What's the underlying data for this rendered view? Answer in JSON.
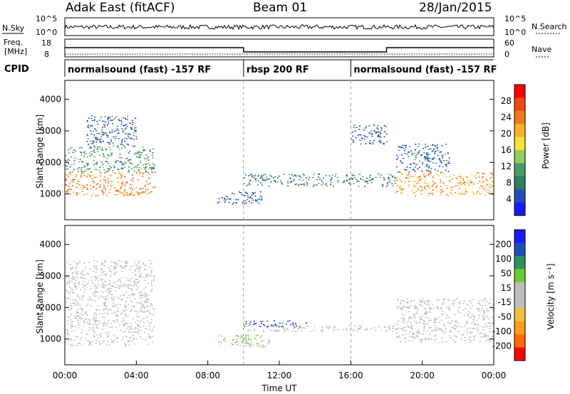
{
  "header": {
    "radar": "Adak East (fitACF)",
    "beam": "Beam 01",
    "date": "28/Jan/2015"
  },
  "strips": {
    "nsky_label": "N.Sky",
    "nsky_ticks": [
      "10^5",
      "10^0"
    ],
    "nsearch_label": "N.Search",
    "freq_label_top": "Freq.",
    "freq_label_units": "[MHz]",
    "freq_ticks": [
      "18",
      "8"
    ],
    "nave_label": "Nave",
    "nave_ticks": [
      "60",
      "0"
    ],
    "cpid_label": "CPID",
    "modes": [
      {
        "label": "normalsound (fast) -157 RF",
        "start_hr": 0,
        "end_hr": 10
      },
      {
        "label": "rbsp 200 RF",
        "start_hr": 10,
        "end_hr": 16
      },
      {
        "label": "normalsound (fast) -157 RF",
        "start_hr": 16,
        "end_hr": 24
      }
    ]
  },
  "colors": {
    "power": [
      "#1a1aff",
      "#1f4fb4",
      "#2e7d5b",
      "#4a9a6a",
      "#8fcf5a",
      "#f5e23a",
      "#f7b12a",
      "#f07a1a",
      "#ee4a10",
      "#ff0000"
    ],
    "velocity": [
      "#ff0000",
      "#ff6a00",
      "#ff9a1a",
      "#f2c040",
      "#bdbdbd",
      "#bdbdbd",
      "#66cc33",
      "#2f8f5f",
      "#1f4fb4",
      "#1a1aff"
    ],
    "ground_scatter": "#bdbdbd"
  },
  "chart_data": [
    {
      "type": "heatmap",
      "panel": "power",
      "ylabel": "Slant Range [km]",
      "xlabel": "",
      "xlim": [
        0,
        24
      ],
      "ylim": [
        180,
        4600
      ],
      "yticks": [
        1000,
        2000,
        3000,
        4000
      ],
      "colorbar": {
        "label": "Power [dB]",
        "range": [
          0,
          32
        ],
        "ticks": [
          4,
          8,
          12,
          16,
          20,
          24,
          28
        ]
      },
      "regions": [
        {
          "t0": 0.0,
          "t1": 5.0,
          "r0": 950,
          "r1": 1700,
          "level": 24
        },
        {
          "t0": 0.0,
          "t1": 5.0,
          "r0": 1700,
          "r1": 2500,
          "level": 10
        },
        {
          "t0": 1.2,
          "t1": 4.0,
          "r0": 2500,
          "r1": 3500,
          "level": 6
        },
        {
          "t0": 8.5,
          "t1": 11.0,
          "r0": 700,
          "r1": 1100,
          "level": 5
        },
        {
          "t0": 10.0,
          "t1": 18.5,
          "r0": 1250,
          "r1": 1650,
          "level": 8
        },
        {
          "t0": 18.5,
          "t1": 24.0,
          "r0": 950,
          "r1": 1700,
          "level": 22
        },
        {
          "t0": 18.5,
          "t1": 21.5,
          "r0": 1700,
          "r1": 2600,
          "level": 6
        },
        {
          "t0": 16.0,
          "t1": 18.0,
          "r0": 2600,
          "r1": 3200,
          "level": 5
        }
      ]
    },
    {
      "type": "heatmap",
      "panel": "velocity",
      "ylabel": "Slant Range [km]",
      "xlabel": "Time UT",
      "xlim": [
        0,
        24
      ],
      "ylim": [
        180,
        4600
      ],
      "yticks": [
        1000,
        2000,
        3000,
        4000
      ],
      "xticks": [
        "00:00",
        "04:00",
        "08:00",
        "12:00",
        "16:00",
        "20:00",
        "00:00"
      ],
      "colorbar": {
        "label": "Velocity [m s⁻¹]",
        "range": [
          -250,
          250
        ],
        "ticks": [
          "200",
          "100",
          "50",
          "15",
          "-15",
          "-50",
          "-100",
          "-200"
        ]
      },
      "regions": [
        {
          "t0": 0.0,
          "t1": 5.0,
          "r0": 800,
          "r1": 3500,
          "velocity": 0
        },
        {
          "t0": 8.5,
          "t1": 11.0,
          "r0": 800,
          "r1": 1150,
          "velocity": 60
        },
        {
          "t0": 10.0,
          "t1": 11.5,
          "r0": 700,
          "r1": 1000,
          "velocity": -40
        },
        {
          "t0": 10.0,
          "t1": 13.5,
          "r0": 1400,
          "r1": 1600,
          "velocity": 200
        },
        {
          "t0": 10.0,
          "t1": 13.0,
          "r0": 1250,
          "r1": 1450,
          "velocity": -30
        },
        {
          "t0": 13.0,
          "t1": 18.5,
          "r0": 1250,
          "r1": 1450,
          "velocity": 0
        },
        {
          "t0": 18.5,
          "t1": 24.0,
          "r0": 900,
          "r1": 2300,
          "velocity": 0
        }
      ]
    }
  ]
}
